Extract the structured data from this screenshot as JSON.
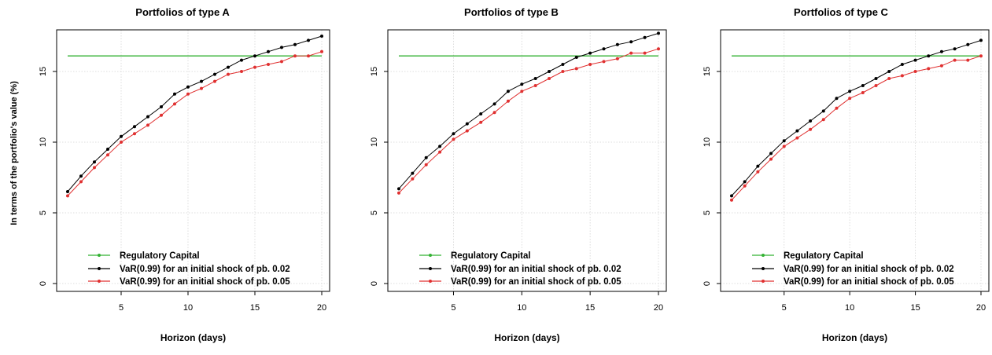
{
  "figure": {
    "ylabel": "In terms of the portfolio's value (%)"
  },
  "legend": [
    {
      "label": "Regulatory Capital",
      "color": "#33b233"
    },
    {
      "label": "VaR(0.99)  for an  initial shock of   pb. 0.02",
      "color": "#000000"
    },
    {
      "label": "VaR(0.99)  for an  initial shock of   pb. 0.05",
      "color": "#e03030"
    }
  ],
  "chart_data": [
    {
      "type": "line",
      "title": "Portfolios of type A",
      "xlabel": "Horizon (days)",
      "xlim": [
        1,
        20
      ],
      "ylim": [
        0,
        17.5
      ],
      "xticks": [
        5,
        10,
        15,
        20
      ],
      "yticks": [
        0,
        5,
        10,
        15
      ],
      "x": [
        1,
        2,
        3,
        4,
        5,
        6,
        7,
        8,
        9,
        10,
        11,
        12,
        13,
        14,
        15,
        16,
        17,
        18,
        19,
        20
      ],
      "series": [
        {
          "name": "Regulatory Capital",
          "color": "#33b233",
          "values": [
            16.1,
            16.1,
            16.1,
            16.1,
            16.1,
            16.1,
            16.1,
            16.1,
            16.1,
            16.1,
            16.1,
            16.1,
            16.1,
            16.1,
            16.1,
            16.1,
            16.1,
            16.1,
            16.1,
            16.1
          ]
        },
        {
          "name": "VaR(0.99)  for an  initial shock of   pb. 0.02",
          "color": "#000000",
          "values": [
            6.5,
            7.6,
            8.6,
            9.5,
            10.4,
            11.1,
            11.8,
            12.5,
            13.4,
            13.9,
            14.3,
            14.8,
            15.3,
            15.8,
            16.1,
            16.4,
            16.7,
            16.9,
            17.2,
            17.5
          ]
        },
        {
          "name": "VaR(0.99)  for an  initial shock of   pb. 0.05",
          "color": "#e03030",
          "values": [
            6.2,
            7.2,
            8.2,
            9.1,
            10.0,
            10.6,
            11.2,
            11.9,
            12.7,
            13.4,
            13.8,
            14.3,
            14.8,
            15.0,
            15.3,
            15.5,
            15.7,
            16.1,
            16.1,
            16.4
          ]
        }
      ]
    },
    {
      "type": "line",
      "title": "Portfolios of type B",
      "xlabel": "Horizon (days)",
      "xlim": [
        1,
        20
      ],
      "ylim": [
        0,
        17.5
      ],
      "xticks": [
        5,
        10,
        15,
        20
      ],
      "yticks": [
        0,
        5,
        10,
        15
      ],
      "x": [
        1,
        2,
        3,
        4,
        5,
        6,
        7,
        8,
        9,
        10,
        11,
        12,
        13,
        14,
        15,
        16,
        17,
        18,
        19,
        20
      ],
      "series": [
        {
          "name": "Regulatory Capital",
          "color": "#33b233",
          "values": [
            16.1,
            16.1,
            16.1,
            16.1,
            16.1,
            16.1,
            16.1,
            16.1,
            16.1,
            16.1,
            16.1,
            16.1,
            16.1,
            16.1,
            16.1,
            16.1,
            16.1,
            16.1,
            16.1,
            16.1
          ]
        },
        {
          "name": "VaR(0.99)  for an  initial shock of   pb. 0.02",
          "color": "#000000",
          "values": [
            6.7,
            7.8,
            8.9,
            9.7,
            10.6,
            11.3,
            12.0,
            12.7,
            13.6,
            14.1,
            14.5,
            15.0,
            15.5,
            16.0,
            16.3,
            16.6,
            16.9,
            17.1,
            17.4,
            17.7
          ]
        },
        {
          "name": "VaR(0.99)  for an  initial shock of   pb. 0.05",
          "color": "#e03030",
          "values": [
            6.4,
            7.4,
            8.4,
            9.3,
            10.2,
            10.8,
            11.4,
            12.1,
            12.9,
            13.6,
            14.0,
            14.5,
            15.0,
            15.2,
            15.5,
            15.7,
            15.9,
            16.3,
            16.3,
            16.6
          ]
        }
      ]
    },
    {
      "type": "line",
      "title": "Portfolios of type C",
      "xlabel": "Horizon (days)",
      "xlim": [
        1,
        20
      ],
      "ylim": [
        0,
        17.5
      ],
      "xticks": [
        5,
        10,
        15,
        20
      ],
      "yticks": [
        0,
        5,
        10,
        15
      ],
      "x": [
        1,
        2,
        3,
        4,
        5,
        6,
        7,
        8,
        9,
        10,
        11,
        12,
        13,
        14,
        15,
        16,
        17,
        18,
        19,
        20
      ],
      "series": [
        {
          "name": "Regulatory Capital",
          "color": "#33b233",
          "values": [
            16.1,
            16.1,
            16.1,
            16.1,
            16.1,
            16.1,
            16.1,
            16.1,
            16.1,
            16.1,
            16.1,
            16.1,
            16.1,
            16.1,
            16.1,
            16.1,
            16.1,
            16.1,
            16.1,
            16.1
          ]
        },
        {
          "name": "VaR(0.99)  for an  initial shock of   pb. 0.02",
          "color": "#000000",
          "values": [
            6.2,
            7.2,
            8.3,
            9.2,
            10.1,
            10.8,
            11.5,
            12.2,
            13.1,
            13.6,
            14.0,
            14.5,
            15.0,
            15.5,
            15.8,
            16.1,
            16.4,
            16.6,
            16.9,
            17.2
          ]
        },
        {
          "name": "VaR(0.99)  for an  initial shock of   pb. 0.05",
          "color": "#e03030",
          "values": [
            5.9,
            6.9,
            7.9,
            8.8,
            9.7,
            10.3,
            10.9,
            11.6,
            12.4,
            13.1,
            13.5,
            14.0,
            14.5,
            14.7,
            15.0,
            15.2,
            15.4,
            15.8,
            15.8,
            16.1
          ]
        }
      ]
    }
  ]
}
